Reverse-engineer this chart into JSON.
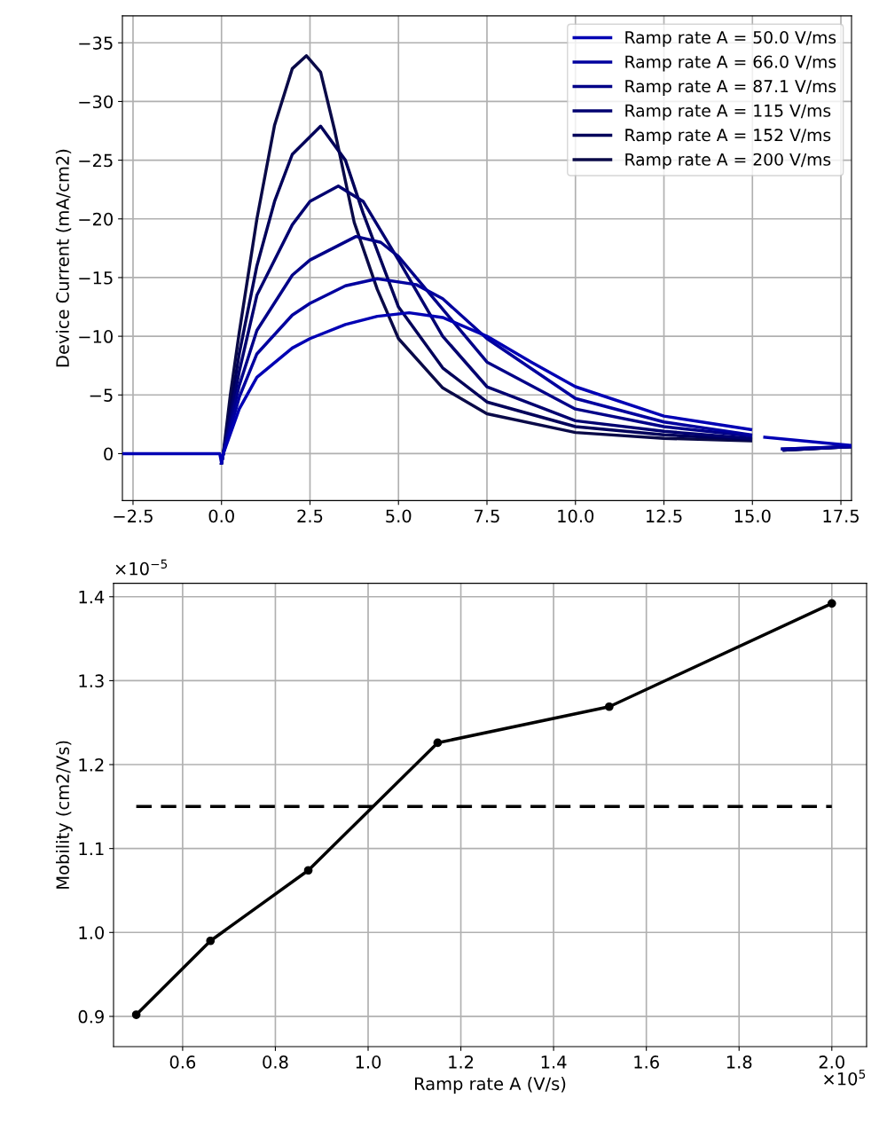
{
  "chart_data": [
    {
      "type": "line",
      "ylabel": "Device Current (mA/cm2)",
      "xlim": [
        -2.8,
        17.8
      ],
      "ylim": [
        4.0,
        -37.3
      ],
      "xticks": [
        {
          "value": -2.5,
          "label": "−2.5"
        },
        {
          "value": 0,
          "label": "0.0"
        },
        {
          "value": 2.5,
          "label": "2.5"
        },
        {
          "value": 5,
          "label": "5.0"
        },
        {
          "value": 7.5,
          "label": "7.5"
        },
        {
          "value": 10,
          "label": "10.0"
        },
        {
          "value": 12.5,
          "label": "12.5"
        },
        {
          "value": 15,
          "label": "15.0"
        },
        {
          "value": 17.5,
          "label": "17.5"
        }
      ],
      "yticks": [
        {
          "value": 0,
          "label": "0"
        },
        {
          "value": -5,
          "label": "−5"
        },
        {
          "value": -10,
          "label": "−10"
        },
        {
          "value": -15,
          "label": "−15"
        },
        {
          "value": -20,
          "label": "−20"
        },
        {
          "value": -25,
          "label": "−25"
        },
        {
          "value": -30,
          "label": "−30"
        },
        {
          "value": -35,
          "label": "−35"
        }
      ],
      "grid": true,
      "legend": "top right",
      "marker": "none",
      "line_style": "solid",
      "series": [
        {
          "name": "Ramp rate A = 50.0 V/ms",
          "color": "#0000b4",
          "x": [
            -2.8,
            -0.05,
            0,
            0.05,
            0.5,
            1,
            2,
            2.5,
            3.5,
            4.4,
            5.3,
            6.25,
            7.5,
            8.75,
            10,
            12.5,
            14.95,
            15.0,
            15.25,
            15.35,
            17.8
          ],
          "values": [
            0,
            0,
            0.8,
            0,
            -3.8,
            -6.5,
            -9,
            -9.8,
            -11,
            -11.7,
            -12,
            -11.6,
            -10,
            -7.8,
            -5.7,
            -3.2,
            -2.05,
            null,
            null,
            -1.4,
            -0.7
          ]
        },
        {
          "name": "Ramp rate A = 66.0 V/ms",
          "color": "#00009e",
          "x": [
            0,
            0.05,
            0.5,
            1,
            2,
            2.5,
            3.5,
            4.4,
            5.5,
            6.25,
            7.5,
            10,
            12.5,
            14.95,
            15.0,
            15.55,
            15.85,
            17.8
          ],
          "values": [
            0.8,
            0,
            -4.8,
            -8.5,
            -11.8,
            -12.8,
            -14.3,
            -14.9,
            -14.4,
            -13.2,
            -9.8,
            -4.7,
            -2.7,
            -1.6,
            null,
            null,
            -0.4,
            -0.6
          ]
        },
        {
          "name": "Ramp rate A = 87.1 V/ms",
          "color": "#000088",
          "x": [
            0,
            0.05,
            0.5,
            1,
            2,
            2.5,
            3.8,
            4.5,
            5,
            6.25,
            7.5,
            10,
            12.5,
            14.95,
            15.0,
            15.55,
            15.85,
            17.8
          ],
          "values": [
            0.8,
            0,
            -5.8,
            -10.5,
            -15.2,
            -16.5,
            -18.5,
            -18,
            -16.8,
            -12.3,
            -7.8,
            -3.8,
            -2.3,
            -1.5,
            null,
            null,
            -0.4,
            -0.6
          ]
        },
        {
          "name": "Ramp rate A = 115 V/ms",
          "color": "#000070",
          "x": [
            0,
            0.05,
            0.5,
            1,
            2,
            2.5,
            3.3,
            4,
            5,
            6.25,
            7.5,
            10,
            12.5,
            14.95,
            15.0,
            15.6,
            15.9,
            17.8
          ],
          "values": [
            0.8,
            0,
            -7,
            -13.5,
            -19.5,
            -21.5,
            -22.8,
            -21.5,
            -16.5,
            -10,
            -5.7,
            -2.8,
            -1.9,
            -1.3,
            null,
            null,
            -0.3,
            -0.6
          ]
        },
        {
          "name": "Ramp rate A = 152 V/ms",
          "color": "#00005a",
          "x": [
            0,
            0.05,
            0.5,
            1,
            1.5,
            2,
            2.8,
            3.5,
            4,
            5,
            6.25,
            7.5,
            10,
            12.5,
            14.95,
            15.0,
            15.6,
            15.9,
            17.8
          ],
          "values": [
            0.8,
            0,
            -8.5,
            -16,
            -21.5,
            -25.5,
            -27.9,
            -25,
            -20.5,
            -12.5,
            -7.3,
            -4.4,
            -2.3,
            -1.6,
            -1.2,
            null,
            null,
            -0.3,
            -0.6
          ]
        },
        {
          "name": "Ramp rate A = 200 V/ms",
          "color": "#0a0a48",
          "x": [
            0,
            0.05,
            0.25,
            0.5,
            1,
            1.5,
            2,
            2.4,
            2.8,
            3.2,
            3.75,
            4.4,
            5,
            6.25,
            7.5,
            10,
            12.5,
            14.95,
            15.0,
            15.6,
            15.9,
            17.8
          ],
          "values": [
            0.8,
            0,
            -5,
            -10.3,
            -20,
            -28,
            -32.8,
            -33.9,
            -32.5,
            -27.5,
            -19.7,
            -14,
            -9.8,
            -5.6,
            -3.4,
            -1.8,
            -1.3,
            -1.1,
            null,
            null,
            -0.3,
            -0.6
          ]
        }
      ]
    },
    {
      "type": "line",
      "xlabel": "Ramp rate A (V/s)",
      "ylabel": "Mobility (cm2/Vs)",
      "xlim": [
        0.451,
        2.075
      ],
      "ylim": [
        0.864,
        1.416
      ],
      "xticks": [
        {
          "value": 0.6,
          "label": "0.6"
        },
        {
          "value": 0.8,
          "label": "0.8"
        },
        {
          "value": 1.0,
          "label": "1.0"
        },
        {
          "value": 1.2,
          "label": "1.2"
        },
        {
          "value": 1.4,
          "label": "1.4"
        },
        {
          "value": 1.6,
          "label": "1.6"
        },
        {
          "value": 1.8,
          "label": "1.8"
        },
        {
          "value": 2.0,
          "label": "2.0"
        }
      ],
      "yticks": [
        {
          "value": 0.9,
          "label": "0.9"
        },
        {
          "value": 1.0,
          "label": "1.0"
        },
        {
          "value": 1.1,
          "label": "1.1"
        },
        {
          "value": 1.2,
          "label": "1.2"
        },
        {
          "value": 1.3,
          "label": "1.3"
        },
        {
          "value": 1.4,
          "label": "1.4"
        }
      ],
      "grid": true,
      "annotations": [
        "×10$^{−5}$",
        "×10$^{5}$"
      ],
      "series": [
        {
          "color": "#000000",
          "marker": "circle",
          "line_style": "solid",
          "x": [
            0.5,
            0.66,
            0.871,
            1.15,
            1.52,
            2.0
          ],
          "values": [
            0.902,
            0.99,
            1.074,
            1.226,
            1.269,
            1.392
          ]
        },
        {
          "color": "#000000",
          "marker": "none",
          "line_style": "dashed",
          "x": [
            0.5,
            2.0
          ],
          "values": [
            1.15,
            1.15
          ]
        }
      ]
    }
  ]
}
